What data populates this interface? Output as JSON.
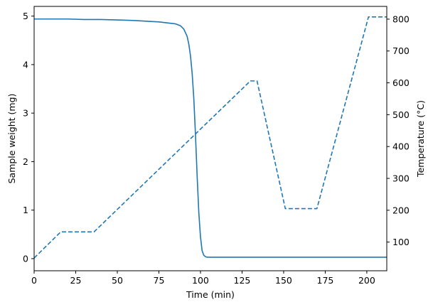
{
  "chart_data": {
    "type": "line",
    "title": "",
    "xlabel": "Time (min)",
    "ylabel": "Sample weight (mg)",
    "y2label": "Temperature (°C)",
    "xlim": [
      0,
      212
    ],
    "ylim": [
      -0.25,
      5.2
    ],
    "y2lim": [
      10,
      840
    ],
    "grid": false,
    "xticks": [
      0,
      25,
      50,
      75,
      100,
      125,
      150,
      175,
      200
    ],
    "yticks": [
      0,
      1,
      2,
      3,
      4,
      5
    ],
    "y2ticks": [
      100,
      200,
      300,
      400,
      500,
      600,
      700,
      800
    ],
    "series": [
      {
        "axis": "left",
        "style": "solid",
        "color": "#1f77b4",
        "x": [
          0,
          10,
          20,
          30,
          40,
          50,
          60,
          70,
          75,
          80,
          85,
          88,
          90,
          92,
          93,
          94,
          95,
          96,
          97,
          98,
          99,
          100,
          101,
          102,
          103,
          104,
          105,
          110,
          150,
          212
        ],
        "y": [
          4.94,
          4.94,
          4.94,
          4.93,
          4.93,
          4.92,
          4.91,
          4.89,
          4.88,
          4.86,
          4.84,
          4.8,
          4.73,
          4.58,
          4.42,
          4.18,
          3.82,
          3.3,
          2.55,
          1.7,
          0.95,
          0.45,
          0.16,
          0.07,
          0.04,
          0.03,
          0.03,
          0.03,
          0.03,
          0.03
        ]
      },
      {
        "axis": "right",
        "style": "dashed",
        "color": "#1f77b4",
        "x": [
          0,
          16,
          36,
          130,
          134,
          151,
          170,
          201,
          212
        ],
        "y": [
          50,
          132,
          132,
          606,
          606,
          205,
          205,
          807,
          807
        ]
      }
    ]
  }
}
